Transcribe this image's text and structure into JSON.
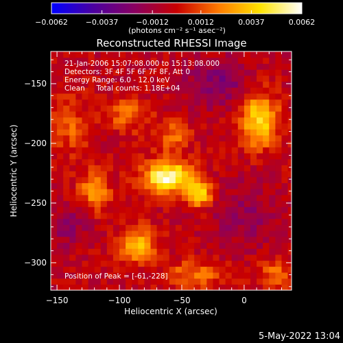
{
  "chart_data": {
    "type": "heatmap",
    "title": "Reconstructed RHESSI Image",
    "colorbar": {
      "min": -0.0062,
      "max": 0.0062,
      "tick_values": [
        -0.0062,
        -0.0037,
        -0.0012,
        0.0012,
        0.0037,
        0.0062
      ],
      "tick_labels": [
        "−0.0062",
        "−0.0037",
        "−0.0012",
        "0.0012",
        "0.0037",
        "0.0062"
      ],
      "unit_text": "(photons cm⁻² s⁻¹ asec⁻²)",
      "colors": [
        "#0000ff",
        "#4b00a0",
        "#8a0060",
        "#c80000",
        "#ff7a00",
        "#ffe300",
        "#ffffff"
      ]
    },
    "xlabel": "Heliocentric X (arcsec)",
    "ylabel": "Heliocentric Y (arcsec)",
    "xlim": [
      -155,
      38
    ],
    "ylim": [
      -323,
      -123
    ],
    "x_ticks": [
      -150,
      -100,
      -50,
      0
    ],
    "x_tick_labels": [
      "−150",
      "−100",
      "−50",
      "0"
    ],
    "y_ticks": [
      -150,
      -200,
      -250,
      -300
    ],
    "y_tick_labels": [
      "−150",
      "−200",
      "−250",
      "−300"
    ],
    "grid": false,
    "annotations": [
      "21-Jan-2006 15:07:08.000 to 15:13:08.000",
      "Detectors: 3F 4F 5F 6F 7F 8F, Att 0",
      "Energy Range: 6.0 - 12.0 keV",
      "Clean     Total counts: 1.18E+04"
    ],
    "peak_label": "Position of Peak = [-61,-228]",
    "peak": [
      -61,
      -228
    ],
    "sources": [
      {
        "x": -61,
        "y": -228,
        "peak": 0.0062,
        "sx": 14,
        "sy": 9
      },
      {
        "x": -36,
        "y": -242,
        "peak": 0.0042,
        "sx": 8,
        "sy": 8
      },
      {
        "x": 12,
        "y": -180,
        "peak": 0.0045,
        "sx": 11,
        "sy": 16
      },
      {
        "x": -85,
        "y": -285,
        "peak": 0.004,
        "sx": 10,
        "sy": 10
      },
      {
        "x": -120,
        "y": -240,
        "peak": 0.0028,
        "sx": 9,
        "sy": 12
      },
      {
        "x": -140,
        "y": -185,
        "peak": 0.0018,
        "sx": 10,
        "sy": 18
      },
      {
        "x": -95,
        "y": -175,
        "peak": 0.0022,
        "sx": 12,
        "sy": 10
      },
      {
        "x": -58,
        "y": -195,
        "peak": 0.0022,
        "sx": 10,
        "sy": 10
      },
      {
        "x": -40,
        "y": -310,
        "peak": 0.0025,
        "sx": 16,
        "sy": 8
      },
      {
        "x": 25,
        "y": -310,
        "peak": 0.002,
        "sx": 10,
        "sy": 10
      },
      {
        "x": -20,
        "y": -150,
        "peak": -0.002,
        "sx": 18,
        "sy": 14
      },
      {
        "x": -140,
        "y": -270,
        "peak": -0.0015,
        "sx": 10,
        "sy": 12
      },
      {
        "x": 0,
        "y": -260,
        "peak": -0.0012,
        "sx": 18,
        "sy": 20
      }
    ]
  },
  "footer": {
    "timestamp": "5-May-2022 13:04"
  }
}
